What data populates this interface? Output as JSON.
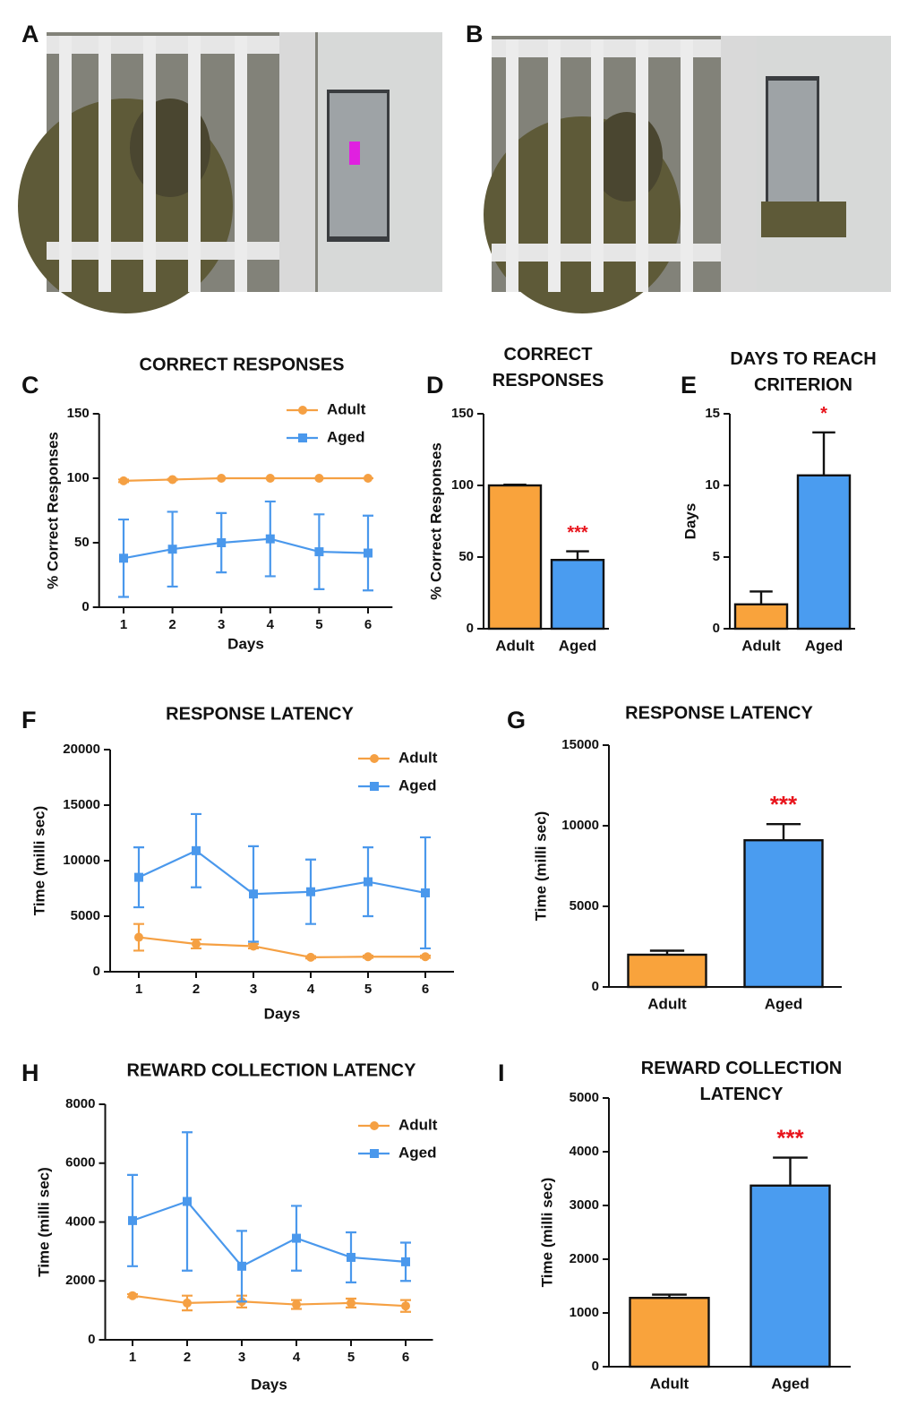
{
  "photos": [
    {
      "panel": "A"
    },
    {
      "panel": "B"
    }
  ],
  "chart_data": [
    {
      "type": "line",
      "panel": "C",
      "title": "CORRECT RESPONSES",
      "xlabel": "Days",
      "ylabel": "% Correct Responses",
      "x": [
        1,
        2,
        3,
        4,
        5,
        6
      ],
      "xlim": [
        0.5,
        6.5
      ],
      "xticks": [
        1,
        2,
        3,
        4,
        5,
        6
      ],
      "ylim": [
        0,
        150
      ],
      "yticks": [
        0,
        50,
        100,
        150
      ],
      "series": [
        {
          "name": "Adult",
          "color": "#f5a043",
          "marker": "circle",
          "values": [
            98,
            99,
            100,
            100,
            100,
            100
          ],
          "errors": [
            1,
            0.5,
            0,
            0,
            0,
            0
          ]
        },
        {
          "name": "Aged",
          "color": "#4a98ec",
          "marker": "square",
          "values": [
            38,
            45,
            50,
            53,
            43,
            42
          ],
          "errors": [
            30,
            29,
            23,
            29,
            29,
            29
          ]
        }
      ]
    },
    {
      "type": "bar",
      "panel": "D",
      "title": "CORRECT RESPONSES",
      "ylabel": "% Correct Responses",
      "categories": [
        "Adult",
        "Aged"
      ],
      "values": [
        100,
        48
      ],
      "errors": [
        0.5,
        6
      ],
      "colors": [
        "#f9a33c",
        "#4a9cf0"
      ],
      "ylim": [
        0,
        150
      ],
      "yticks": [
        0,
        50,
        100,
        150
      ],
      "annotation": "***",
      "annotation_color": "#e8141c"
    },
    {
      "type": "bar",
      "panel": "E",
      "title": "DAYS TO REACH CRITERION",
      "ylabel": "Days",
      "categories": [
        "Adult",
        "Aged"
      ],
      "values": [
        1.7,
        10.7
      ],
      "errors": [
        0.9,
        3.0
      ],
      "colors": [
        "#f9a33c",
        "#4a9cf0"
      ],
      "ylim": [
        0,
        15
      ],
      "yticks": [
        0,
        5,
        10,
        15
      ],
      "annotation": "*",
      "annotation_color": "#e8141c"
    },
    {
      "type": "line",
      "panel": "F",
      "title": "RESPONSE LATENCY",
      "xlabel": "Days",
      "ylabel": "Time (milli sec)",
      "x": [
        1,
        2,
        3,
        4,
        5,
        6
      ],
      "xlim": [
        0.5,
        6.5
      ],
      "xticks": [
        1,
        2,
        3,
        4,
        5,
        6
      ],
      "ylim": [
        0,
        20000
      ],
      "yticks": [
        0,
        5000,
        10000,
        15000,
        20000
      ],
      "series": [
        {
          "name": "Adult",
          "color": "#f5a043",
          "marker": "circle",
          "values": [
            3100,
            2500,
            2300,
            1300,
            1350,
            1350
          ],
          "errors": [
            1200,
            400,
            200,
            100,
            100,
            100
          ]
        },
        {
          "name": "Aged",
          "color": "#4a98ec",
          "marker": "square",
          "values": [
            8500,
            10900,
            7000,
            7200,
            8100,
            7100
          ],
          "errors": [
            2700,
            3300,
            4300,
            2900,
            3100,
            5000
          ]
        }
      ]
    },
    {
      "type": "bar",
      "panel": "G",
      "title": "RESPONSE LATENCY",
      "ylabel": "Time (milli sec)",
      "categories": [
        "Adult",
        "Aged"
      ],
      "values": [
        2000,
        9100
      ],
      "errors": [
        250,
        1000
      ],
      "colors": [
        "#f9a33c",
        "#4a9cf0"
      ],
      "ylim": [
        0,
        15000
      ],
      "yticks": [
        0,
        5000,
        10000,
        15000
      ],
      "annotation": "***",
      "annotation_color": "#e8141c"
    },
    {
      "type": "line",
      "panel": "H",
      "title": "REWARD COLLECTION LATENCY",
      "xlabel": "Days",
      "ylabel": "Time (milli sec)",
      "x": [
        1,
        2,
        3,
        4,
        5,
        6
      ],
      "xlim": [
        0.5,
        6.5
      ],
      "xticks": [
        1,
        2,
        3,
        4,
        5,
        6
      ],
      "ylim": [
        0,
        8000
      ],
      "yticks": [
        0,
        2000,
        4000,
        6000,
        8000
      ],
      "series": [
        {
          "name": "Adult",
          "color": "#f5a043",
          "marker": "circle",
          "values": [
            1500,
            1250,
            1300,
            1200,
            1250,
            1150
          ],
          "errors": [
            50,
            250,
            200,
            150,
            150,
            200
          ]
        },
        {
          "name": "Aged",
          "color": "#4a98ec",
          "marker": "square",
          "values": [
            4050,
            4700,
            2500,
            3450,
            2800,
            2650
          ],
          "errors": [
            1550,
            2350,
            1200,
            1100,
            850,
            650
          ]
        }
      ]
    },
    {
      "type": "bar",
      "panel": "I",
      "title": "REWARD COLLECTION LATENCY",
      "ylabel": "Time (milli sec)",
      "categories": [
        "Adult",
        "Aged"
      ],
      "values": [
        1280,
        3370
      ],
      "errors": [
        60,
        520
      ],
      "colors": [
        "#f9a33c",
        "#4a9cf0"
      ],
      "ylim": [
        0,
        5000
      ],
      "yticks": [
        0,
        1000,
        2000,
        3000,
        4000,
        5000
      ],
      "annotation": "***",
      "annotation_color": "#e8141c"
    }
  ]
}
